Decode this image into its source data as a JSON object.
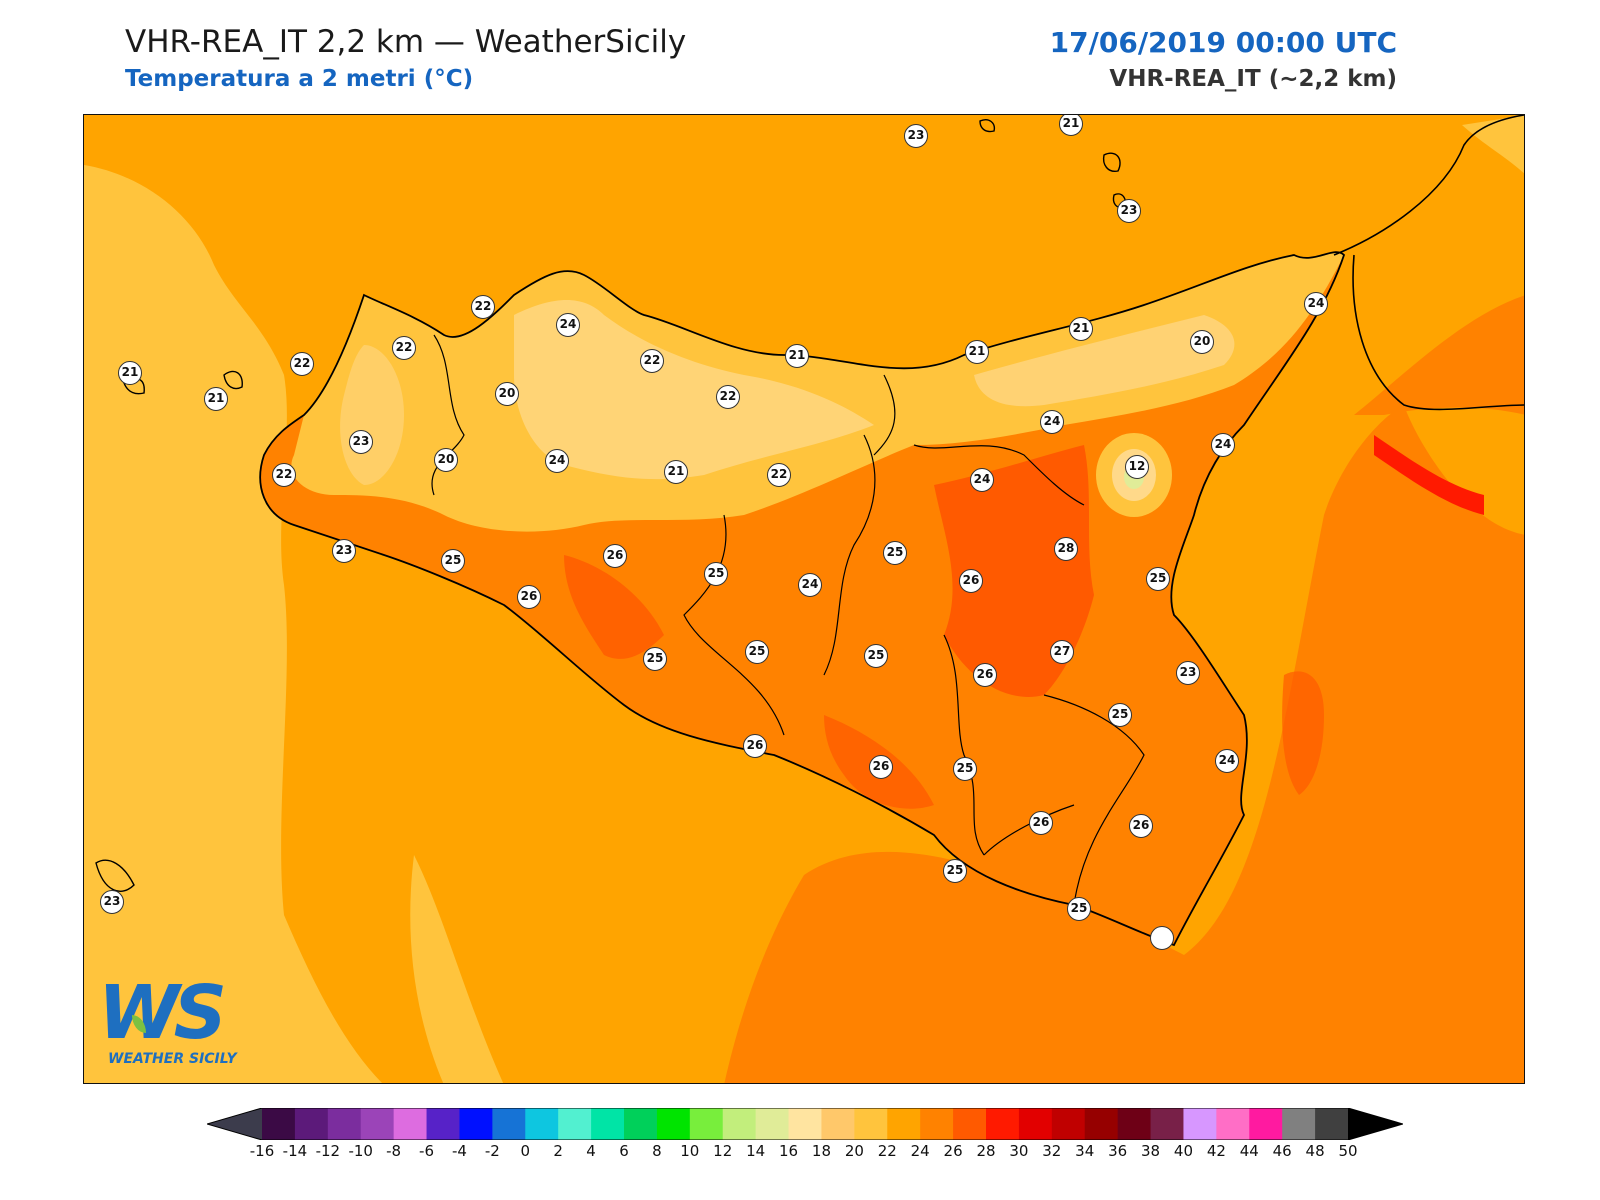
{
  "header": {
    "title": "VHR-REA_IT 2,2 km — WeatherSicily",
    "subtitle": "Temperatura a 2 metri (°C)",
    "datetime": "17/06/2019 00:00 UTC",
    "model": "VHR-REA_IT (~2,2 km)"
  },
  "logo": {
    "text": "WS",
    "caption": "WEATHER SICILY"
  },
  "colors": {
    "sea_20_22": "#ffc43d",
    "t22_24": "#ffa400",
    "t24_26": "#ff8c00",
    "t26_28": "#ff6a00",
    "t18_20": "#ffd98a",
    "border": "#000000"
  },
  "stations": [
    {
      "value": "23"
    },
    {
      "value": "21"
    },
    {
      "value": "23"
    },
    {
      "value": "24"
    },
    {
      "value": "22"
    },
    {
      "value": "24"
    },
    {
      "value": "22"
    },
    {
      "value": "22"
    },
    {
      "value": "21"
    },
    {
      "value": "21"
    },
    {
      "value": "21"
    },
    {
      "value": "20"
    },
    {
      "value": "21"
    },
    {
      "value": "22"
    },
    {
      "value": "20"
    },
    {
      "value": "22"
    },
    {
      "value": "21"
    },
    {
      "value": "24"
    },
    {
      "value": "24"
    },
    {
      "value": "23"
    },
    {
      "value": "20"
    },
    {
      "value": "24"
    },
    {
      "value": "21"
    },
    {
      "value": "22"
    },
    {
      "value": "12"
    },
    {
      "value": "22"
    },
    {
      "value": "24"
    },
    {
      "value": "23"
    },
    {
      "value": "25"
    },
    {
      "value": "26"
    },
    {
      "value": "25"
    },
    {
      "value": "28"
    },
    {
      "value": "26"
    },
    {
      "value": "24"
    },
    {
      "value": "26"
    },
    {
      "value": "25"
    },
    {
      "value": "25"
    },
    {
      "value": "25"
    },
    {
      "value": "25"
    },
    {
      "value": "27"
    },
    {
      "value": "26"
    },
    {
      "value": "23"
    },
    {
      "value": "25"
    },
    {
      "value": "26"
    },
    {
      "value": "26"
    },
    {
      "value": "25"
    },
    {
      "value": "24"
    },
    {
      "value": "26"
    },
    {
      "value": "26"
    },
    {
      "value": "25"
    },
    {
      "value": "25"
    },
    {
      "value": "23"
    },
    {
      "value": "25"
    }
  ],
  "colorbar": {
    "ticks": [
      "-16",
      "-14",
      "-12",
      "-10",
      "-8",
      "-6",
      "-4",
      "-2",
      "0",
      "2",
      "4",
      "6",
      "8",
      "10",
      "12",
      "14",
      "16",
      "18",
      "20",
      "22",
      "24",
      "26",
      "28",
      "30",
      "32",
      "34",
      "36",
      "38",
      "40",
      "42",
      "44",
      "46",
      "48",
      "50"
    ],
    "colors": [
      "#3b0a45",
      "#5c1a7a",
      "#7b2d9e",
      "#9b44b8",
      "#dd6ce0",
      "#5722c8",
      "#0010ff",
      "#1673d6",
      "#0ec6e0",
      "#52f0d0",
      "#00e4a6",
      "#00d05a",
      "#00e400",
      "#78ee3c",
      "#c2ee7c",
      "#e0ec98",
      "#ffe4a0",
      "#ffc86a",
      "#ffc43d",
      "#ffa400",
      "#ff8200",
      "#ff5a00",
      "#ff1a00",
      "#e20000",
      "#c00000",
      "#960000",
      "#6e0016",
      "#782048",
      "#d797ff",
      "#ff6ec6",
      "#ff1aa0",
      "#808080",
      "#404040"
    ],
    "under_color": "#3c3c4c",
    "over_color": "#000000"
  }
}
